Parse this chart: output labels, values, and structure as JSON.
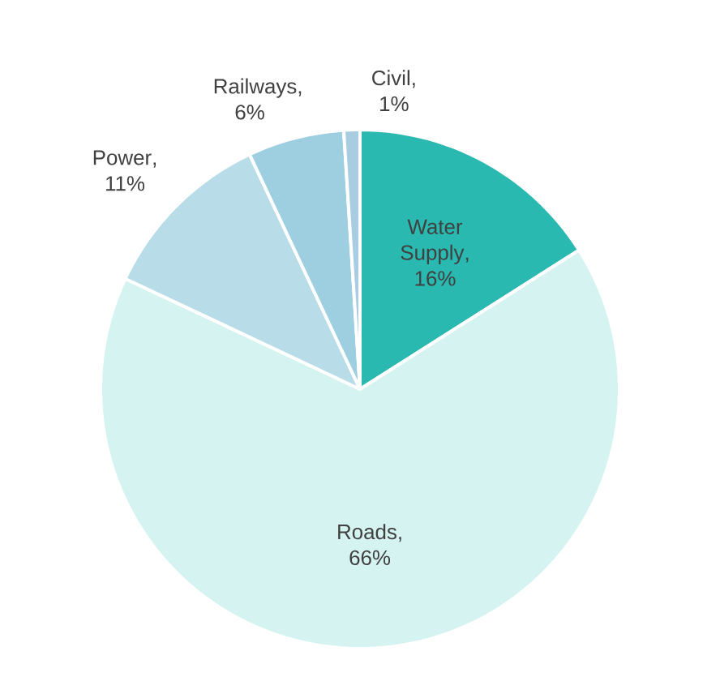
{
  "chart_data": {
    "type": "pie",
    "categories": [
      "Water Supply",
      "Roads",
      "Power",
      "Railways",
      "Civil"
    ],
    "values": [
      16,
      66,
      11,
      6,
      1
    ],
    "value_labels": [
      ", 16%",
      ", 66%",
      ", 11%",
      ", 6%",
      ", 1%"
    ],
    "colors": [
      "#2ab9b0",
      "#d4f3f1",
      "#b8dde8",
      "#9ecfe0",
      "#a8cde0"
    ]
  }
}
